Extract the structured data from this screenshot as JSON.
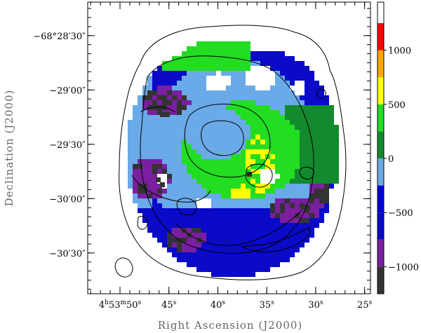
{
  "chart_data": {
    "type": "heatmap",
    "xlabel": "Right Ascension (J2000)",
    "ylabel": "Declination (J2000)",
    "x_ticks": [
      {
        "h": "4",
        "m": "53",
        "s": "50",
        "sec": 50
      },
      {
        "s": "45",
        "sec": 45
      },
      {
        "s": "40",
        "sec": 40
      },
      {
        "s": "35",
        "sec": 35
      },
      {
        "s": "30",
        "sec": 30
      },
      {
        "s": "25",
        "sec": 25
      }
    ],
    "y_ticks": [
      {
        "label": "−68°28′30″",
        "arcsec": 30
      },
      {
        "label": "−29′00″",
        "arcsec": 60
      },
      {
        "label": "−29′30″",
        "arcsec": 90
      },
      {
        "label": "−30′00″",
        "arcsec": 120
      },
      {
        "label": "−30′30″",
        "arcsec": 150
      }
    ],
    "xlim_sec": [
      53.3,
      24.4
    ],
    "ylim_arcsec_below_28": [
      11.5,
      172.5
    ],
    "colorbar": {
      "labels": [
        "1000",
        "500",
        "0",
        "−500",
        "−1000"
      ],
      "label_values": [
        1000,
        500,
        0,
        -500,
        -1000
      ],
      "range": [
        -1250,
        1250
      ],
      "bands": [
        {
          "from": -1250,
          "to": -1000,
          "color": "#333333"
        },
        {
          "from": -1000,
          "to": -750,
          "color": "#7a1fa0"
        },
        {
          "from": -750,
          "to": -500,
          "color": "#0a0ac8"
        },
        {
          "from": -500,
          "to": -250,
          "color": "#0000d8"
        },
        {
          "from": -250,
          "to": 0,
          "color": "#6aaae8"
        },
        {
          "from": 0,
          "to": 250,
          "color": "#138a2e"
        },
        {
          "from": 250,
          "to": 500,
          "color": "#22dd22"
        },
        {
          "from": 500,
          "to": 750,
          "color": "#ffff00"
        },
        {
          "from": 750,
          "to": 1000,
          "color": "#ffa500"
        },
        {
          "from": 1000,
          "to": 1250,
          "color": "#ff0000"
        },
        {
          "from": 1250,
          "to": 1250,
          "color": "#ffffff"
        }
      ]
    },
    "palette": {
      "dark": "#333333",
      "purple": "#7a1fa0",
      "blue": "#0a0ac8",
      "light_blue": "#6aaae8",
      "dark_green": "#138a2e",
      "green": "#22dd22",
      "yellow": "#ffff00",
      "orange": "#ffa500",
      "red": "#ff0000"
    },
    "beam": {
      "sec": 49.6,
      "arcsec": 158,
      "rx": 12,
      "ry": 14
    }
  }
}
